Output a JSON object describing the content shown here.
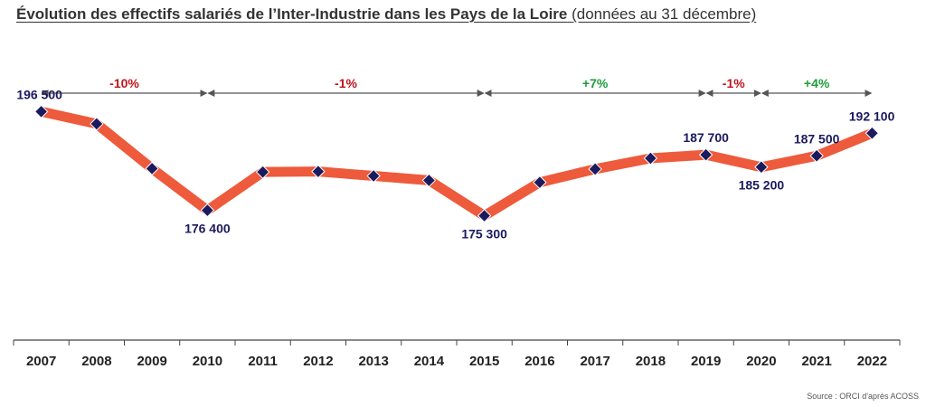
{
  "title": {
    "main": "Évolution des effectifs salariés de l’Inter-Industrie dans les Pays de la Loire",
    "sub": "(données au 31 décembre)"
  },
  "source": "Source : ORCI d'après ACOSS",
  "colors": {
    "line": "#ee5a3c",
    "marker": "#1a1a5e",
    "negative": "#c0141e",
    "positive": "#1e9e3a",
    "arrow": "#555555",
    "axis": "#444444"
  },
  "chart_data": {
    "type": "line",
    "x": [
      2007,
      2008,
      2009,
      2010,
      2011,
      2012,
      2013,
      2014,
      2015,
      2016,
      2017,
      2018,
      2019,
      2020,
      2021,
      2022
    ],
    "ylim": [
      150000,
      210000
    ],
    "grid": false,
    "series": [
      {
        "values": [
          196500,
          194000,
          184900,
          176400,
          184200,
          184300,
          183400,
          182500,
          175300,
          182100,
          184800,
          187000,
          187700,
          185200,
          187500,
          192100
        ]
      }
    ],
    "data_labels": [
      {
        "year": 2007,
        "text": "196 500",
        "pos": "above"
      },
      {
        "year": 2010,
        "text": "176 400",
        "pos": "below"
      },
      {
        "year": 2015,
        "text": "175 300",
        "pos": "below"
      },
      {
        "year": 2019,
        "text": "187 700",
        "pos": "above"
      },
      {
        "year": 2020,
        "text": "185 200",
        "pos": "below"
      },
      {
        "year": 2021,
        "text": "187 500",
        "pos": "above"
      },
      {
        "year": 2022,
        "text": "192 100",
        "pos": "above"
      }
    ],
    "periods": [
      {
        "from": 2007,
        "to": 2010,
        "label": "-10%",
        "sign": "negative"
      },
      {
        "from": 2010,
        "to": 2015,
        "label": "-1%",
        "sign": "negative"
      },
      {
        "from": 2015,
        "to": 2019,
        "label": "+7%",
        "sign": "positive"
      },
      {
        "from": 2019,
        "to": 2020,
        "label": "-1%",
        "sign": "negative"
      },
      {
        "from": 2020,
        "to": 2022,
        "label": "+4%",
        "sign": "positive"
      }
    ]
  }
}
